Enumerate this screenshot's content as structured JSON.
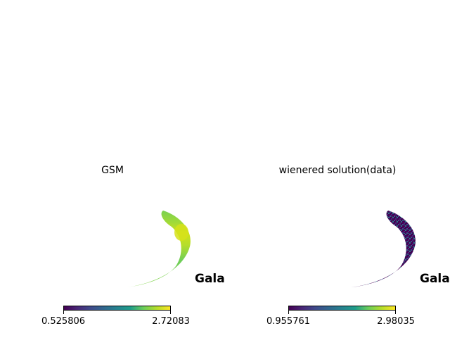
{
  "chart_data": [
    {
      "type": "heatmap",
      "title": "GSM",
      "projection_label": "Galactic",
      "colormap": "viridis",
      "colorbar": {
        "min": 0.525806,
        "max": 2.72083,
        "tick_labels": [
          "0.525806",
          "2.72083"
        ]
      },
      "dominant_value_range": [
        1.8,
        2.5
      ]
    },
    {
      "type": "heatmap",
      "title": "wienered solution(data)",
      "projection_label": "Galactic",
      "colormap": "viridis",
      "colorbar": {
        "min": 0.955761,
        "max": 2.98035,
        "tick_labels": [
          "0.955761",
          "2.98035"
        ]
      },
      "dominant_value_range": [
        0.96,
        1.5
      ]
    }
  ]
}
